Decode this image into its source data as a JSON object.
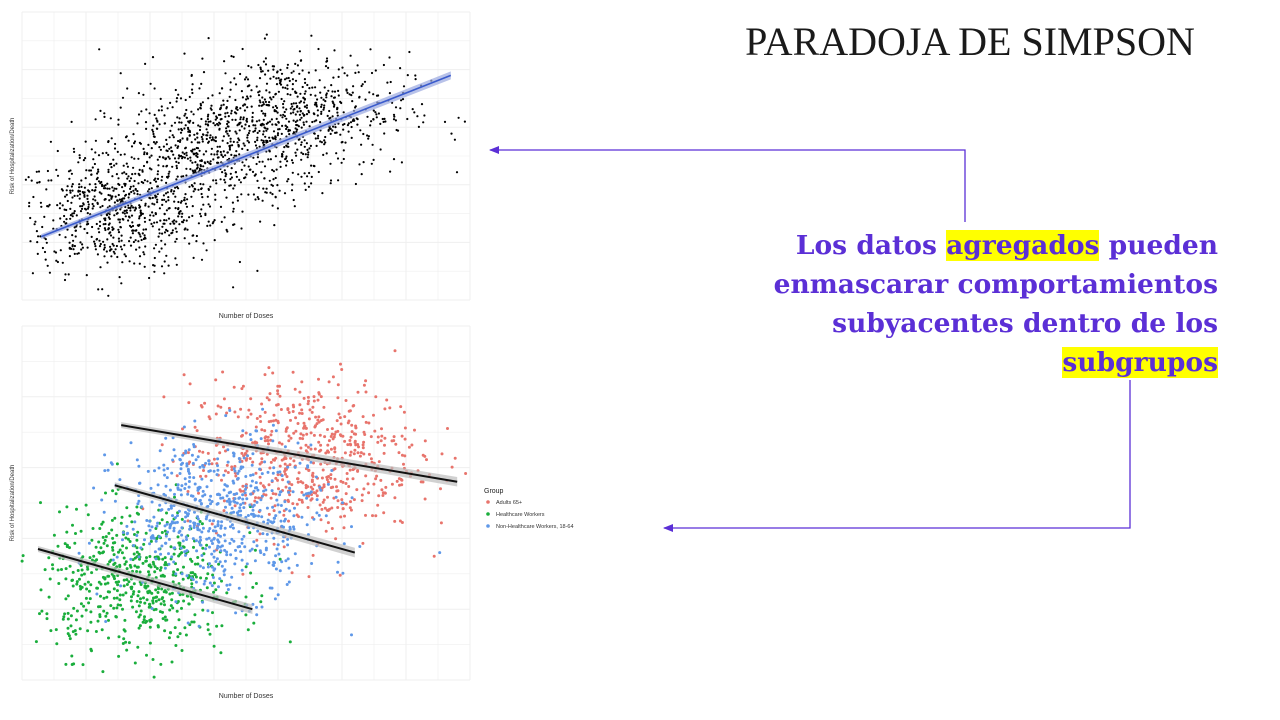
{
  "slide": {
    "title": "PARADOJA DE SIMPSON",
    "callout": {
      "parts": [
        {
          "text": "Los datos ",
          "highlight": false
        },
        {
          "text": "agregados",
          "highlight": true
        },
        {
          "text": " pueden enmascarar comportamientos subyacentes dentro de los ",
          "highlight": false
        },
        {
          "text": "subgrupos",
          "highlight": true
        }
      ],
      "text_color": "#5b2fd6",
      "highlight_color": "#ffff00"
    },
    "arrow_color": "#5b2fd6"
  },
  "chart_data": [
    {
      "type": "scatter",
      "title": "",
      "xlabel": "Number of Doses",
      "ylabel": "Risk of Hospitalization/Death",
      "xlim": [
        0,
        14
      ],
      "ylim": [
        0,
        10
      ],
      "grid": true,
      "legend": "none",
      "point_color": "#000000",
      "regression": {
        "label": "",
        "x": [
          0.6,
          13.4
        ],
        "y": [
          2.2,
          7.8
        ],
        "color": "#3a5bcc",
        "band_color": "#9aa8df"
      },
      "clusters": [
        {
          "center_x": 3.0,
          "center_y": 3.0,
          "spread_x": 1.6,
          "spread_y": 1.0,
          "count": 700
        },
        {
          "center_x": 6.0,
          "center_y": 5.1,
          "spread_x": 1.7,
          "spread_y": 1.0,
          "count": 600
        },
        {
          "center_x": 8.5,
          "center_y": 6.6,
          "spread_x": 1.8,
          "spread_y": 1.0,
          "count": 600
        }
      ]
    },
    {
      "type": "scatter",
      "title": "",
      "xlabel": "Number of Doses",
      "ylabel": "Risk of Hospitalization/Death",
      "xlim": [
        0,
        14
      ],
      "ylim": [
        0,
        10
      ],
      "grid": true,
      "legend": "right",
      "legend_title": "Group",
      "series": [
        {
          "name": "Adults 65+",
          "color": "#e8746c",
          "center_x": 8.8,
          "center_y": 6.3,
          "spread_x": 1.8,
          "spread_y": 1.1,
          "count": 650,
          "fit": {
            "x": [
              3.1,
              13.6
            ],
            "y": [
              7.2,
              5.6
            ]
          }
        },
        {
          "name": "Healthcare Workers",
          "color": "#1aae3c",
          "center_x": 3.6,
          "center_y": 2.8,
          "spread_x": 1.5,
          "spread_y": 1.0,
          "count": 600,
          "fit": {
            "x": [
              0.5,
              7.2
            ],
            "y": [
              3.7,
              2.0
            ]
          }
        },
        {
          "name": "Non-Healthcare Workers, 18-64",
          "color": "#5f98e8",
          "center_x": 6.2,
          "center_y": 4.6,
          "spread_x": 1.6,
          "spread_y": 1.1,
          "count": 650,
          "fit": {
            "x": [
              2.9,
              10.4
            ],
            "y": [
              5.5,
              3.6
            ]
          }
        }
      ],
      "fit_color": "#111111",
      "band_color": "#bdbdbd"
    }
  ]
}
